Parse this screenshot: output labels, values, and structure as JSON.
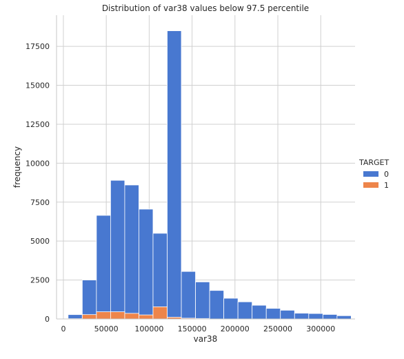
{
  "chart_data": {
    "type": "bar",
    "title": "Distribution of var38 values below 97.5 percentile",
    "xlabel": "var38",
    "ylabel": "frequency",
    "xlim": [
      -8000,
      340000
    ],
    "ylim": [
      0,
      19500
    ],
    "xticks": [
      0,
      50000,
      100000,
      150000,
      200000,
      250000,
      300000
    ],
    "yticks": [
      0,
      2500,
      5000,
      7500,
      10000,
      12500,
      15000,
      17500
    ],
    "grid": true,
    "legend": {
      "title": "TARGET",
      "placement": "right"
    },
    "series": [
      {
        "name": "0",
        "color": "#4878d0",
        "bins": [
          {
            "x0": 5500,
            "x1": 22000,
            "count": 280
          },
          {
            "x0": 22000,
            "x1": 38500,
            "count": 2500
          },
          {
            "x0": 38500,
            "x1": 55000,
            "count": 6650
          },
          {
            "x0": 55000,
            "x1": 71500,
            "count": 8900
          },
          {
            "x0": 71500,
            "x1": 88000,
            "count": 8600
          },
          {
            "x0": 88000,
            "x1": 104500,
            "count": 7050
          },
          {
            "x0": 104500,
            "x1": 121000,
            "count": 5500
          },
          {
            "x0": 121000,
            "x1": 137500,
            "count": 18500
          },
          {
            "x0": 137500,
            "x1": 154000,
            "count": 3050
          },
          {
            "x0": 154000,
            "x1": 170500,
            "count": 2380
          },
          {
            "x0": 170500,
            "x1": 187000,
            "count": 1830
          },
          {
            "x0": 187000,
            "x1": 203500,
            "count": 1330
          },
          {
            "x0": 203500,
            "x1": 220000,
            "count": 1100
          },
          {
            "x0": 220000,
            "x1": 236500,
            "count": 880
          },
          {
            "x0": 236500,
            "x1": 253000,
            "count": 680
          },
          {
            "x0": 253000,
            "x1": 269500,
            "count": 560
          },
          {
            "x0": 269500,
            "x1": 286000,
            "count": 370
          },
          {
            "x0": 286000,
            "x1": 302500,
            "count": 350
          },
          {
            "x0": 302500,
            "x1": 319000,
            "count": 290
          },
          {
            "x0": 319000,
            "x1": 335500,
            "count": 210
          }
        ]
      },
      {
        "name": "1",
        "color": "#ee854a",
        "bins": [
          {
            "x0": 5500,
            "x1": 22000,
            "count": 20
          },
          {
            "x0": 22000,
            "x1": 38500,
            "count": 280
          },
          {
            "x0": 38500,
            "x1": 55000,
            "count": 460
          },
          {
            "x0": 55000,
            "x1": 71500,
            "count": 460
          },
          {
            "x0": 71500,
            "x1": 88000,
            "count": 360
          },
          {
            "x0": 88000,
            "x1": 104500,
            "count": 260
          },
          {
            "x0": 104500,
            "x1": 121000,
            "count": 780
          },
          {
            "x0": 121000,
            "x1": 137500,
            "count": 110
          },
          {
            "x0": 137500,
            "x1": 154000,
            "count": 50
          },
          {
            "x0": 154000,
            "x1": 170500,
            "count": 30
          }
        ]
      }
    ]
  }
}
